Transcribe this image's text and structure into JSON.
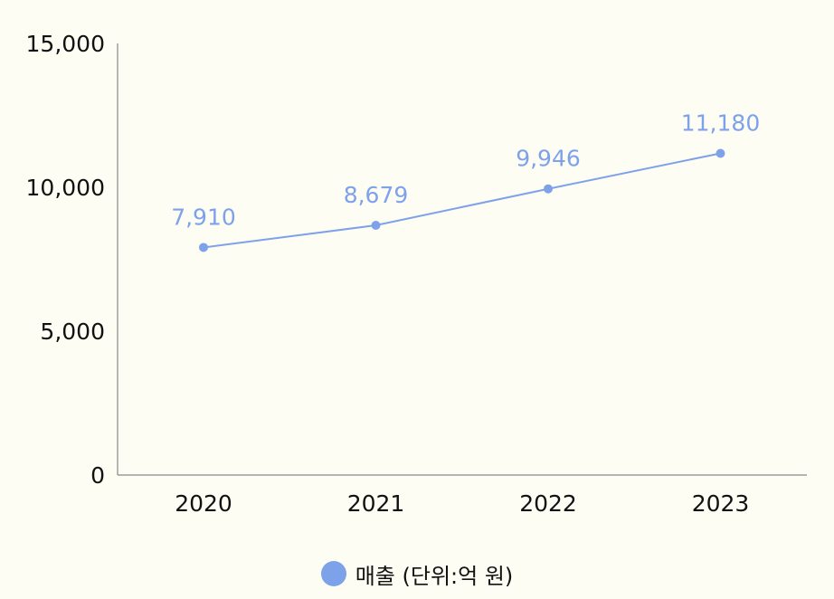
{
  "chart_data": {
    "type": "line",
    "categories": [
      "2020",
      "2021",
      "2022",
      "2023"
    ],
    "series": [
      {
        "name": "매출 (단위:억 원)",
        "values": [
          7910,
          8679,
          9946,
          11180
        ],
        "value_labels": [
          "7,910",
          "8,679",
          "9,946",
          "11,180"
        ]
      }
    ],
    "ylim": [
      0,
      15000
    ],
    "yticks": [
      0,
      5000,
      10000,
      15000
    ],
    "ytick_labels": [
      "0",
      "5,000",
      "10,000",
      "15,000"
    ],
    "grid": false,
    "legend": "bottom-center",
    "colors": {
      "series": "#7ea2ea",
      "axis": "#888888",
      "background": "#fefdf4"
    }
  }
}
